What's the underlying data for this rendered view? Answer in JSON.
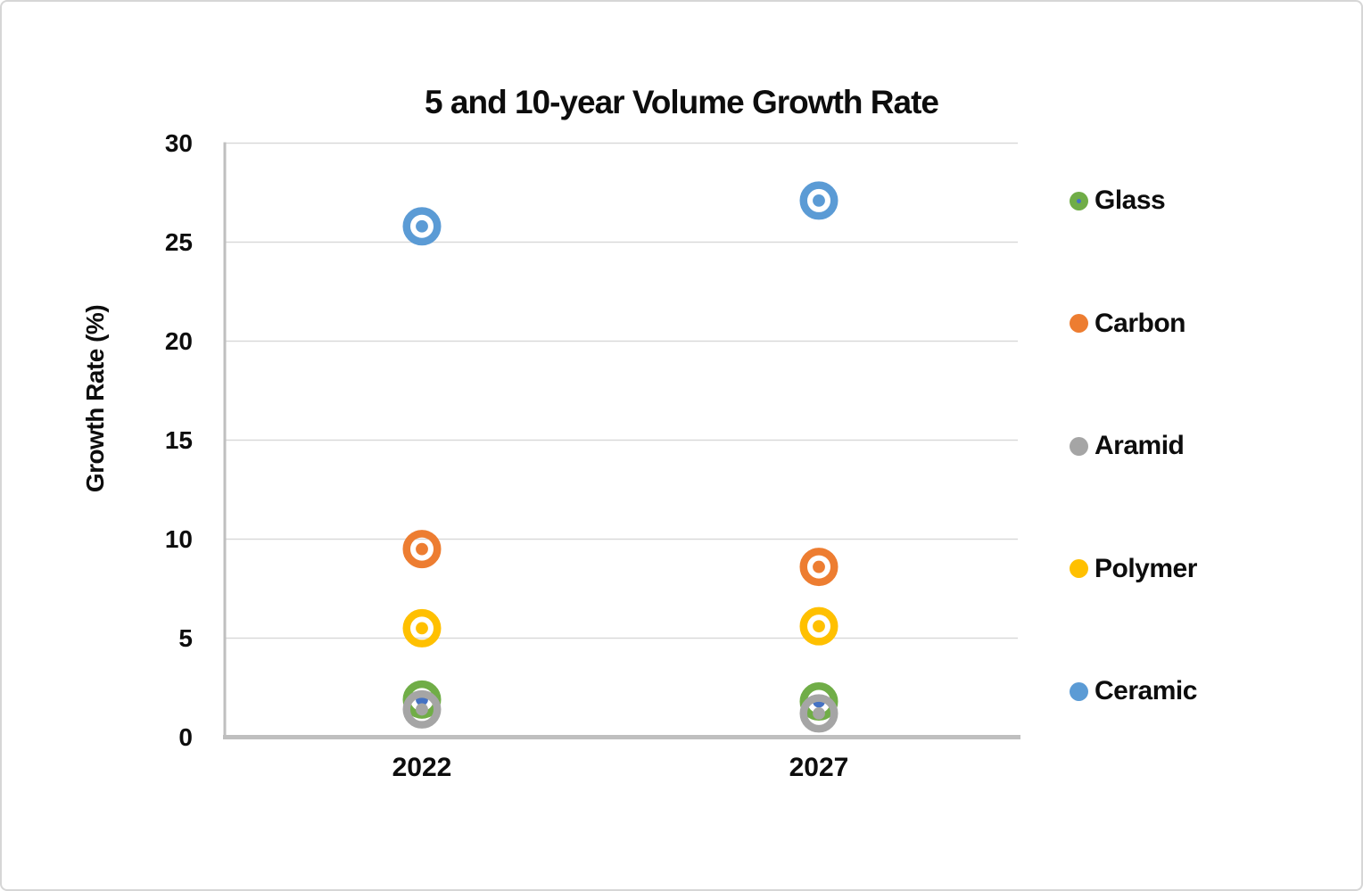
{
  "chart_data": {
    "type": "scatter",
    "title": "5 and 10-year Volume Growth Rate",
    "xlabel": "",
    "ylabel": "Growth Rate (%)",
    "categories": [
      "2022",
      "2027"
    ],
    "series": [
      {
        "name": "Glass",
        "color": "#70AD47",
        "dot_color": "#4472C4",
        "values": [
          1.9,
          1.8
        ]
      },
      {
        "name": "Carbon",
        "color": "#ED7D31",
        "dot_color": "#ED7D31",
        "values": [
          9.5,
          8.6
        ]
      },
      {
        "name": "Aramid",
        "color": "#A5A5A5",
        "dot_color": "#A5A5A5",
        "values": [
          1.4,
          1.2
        ]
      },
      {
        "name": "Polymer",
        "color": "#FFC000",
        "dot_color": "#FFC000",
        "values": [
          5.5,
          5.6
        ]
      },
      {
        "name": "Ceramic",
        "color": "#5B9BD5",
        "dot_color": "#5B9BD5",
        "values": [
          25.8,
          27.1
        ]
      }
    ],
    "ylim": [
      0,
      30
    ],
    "yticks": [
      30,
      25,
      20,
      15,
      10,
      5,
      0
    ],
    "grid": true,
    "legend_position": "right",
    "marker_style": "bullseye"
  },
  "colors": {
    "gridline": "#D9D9D9",
    "axis_line": "#BFBFBF",
    "text": "#0d0d0d",
    "background": "#FFFFFF"
  }
}
